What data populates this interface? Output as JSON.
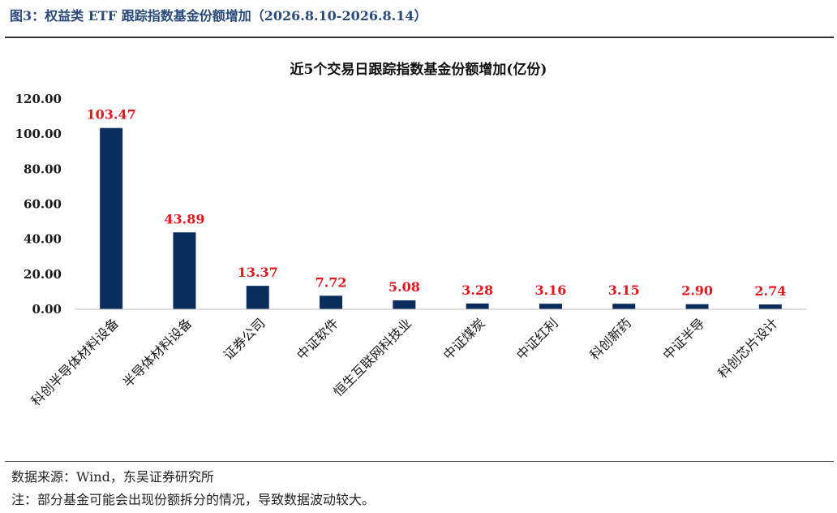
{
  "figure": {
    "title": "图3：权益类 ETF 跟踪指数基金份额增加（2026.8.10-2026.8.14）"
  },
  "footer": {
    "source": "数据来源：Wind，东吴证券研究所",
    "note": "注：部分基金可能会出现份额拆分的情况，导致数据波动较大。"
  },
  "colors": {
    "bar": "#0b2d5e",
    "data_label": "#e8141c",
    "title_blue": "#2a4a7a"
  },
  "chart_data": {
    "type": "bar",
    "title": "近5个交易日跟踪指数基金份额增加(亿份)",
    "categories": [
      "科创半导体材料设备",
      "半导体材料设备",
      "证券公司",
      "中证软件",
      "恒生互联网科技业",
      "中证煤炭",
      "中证红利",
      "科创新药",
      "中证半导",
      "科创芯片设计"
    ],
    "values": [
      103.47,
      43.89,
      13.37,
      7.72,
      5.08,
      3.28,
      3.16,
      3.15,
      2.9,
      2.74
    ],
    "value_labels": [
      "103.47",
      "43.89",
      "13.37",
      "7.72",
      "5.08",
      "3.28",
      "3.16",
      "3.15",
      "2.90",
      "2.74"
    ],
    "yticks": [
      "0.00",
      "20.00",
      "40.00",
      "60.00",
      "80.00",
      "100.00",
      "120.00"
    ],
    "ylim": [
      0,
      120
    ],
    "xlabel": "",
    "ylabel": "",
    "grid": false,
    "legend": "none"
  }
}
